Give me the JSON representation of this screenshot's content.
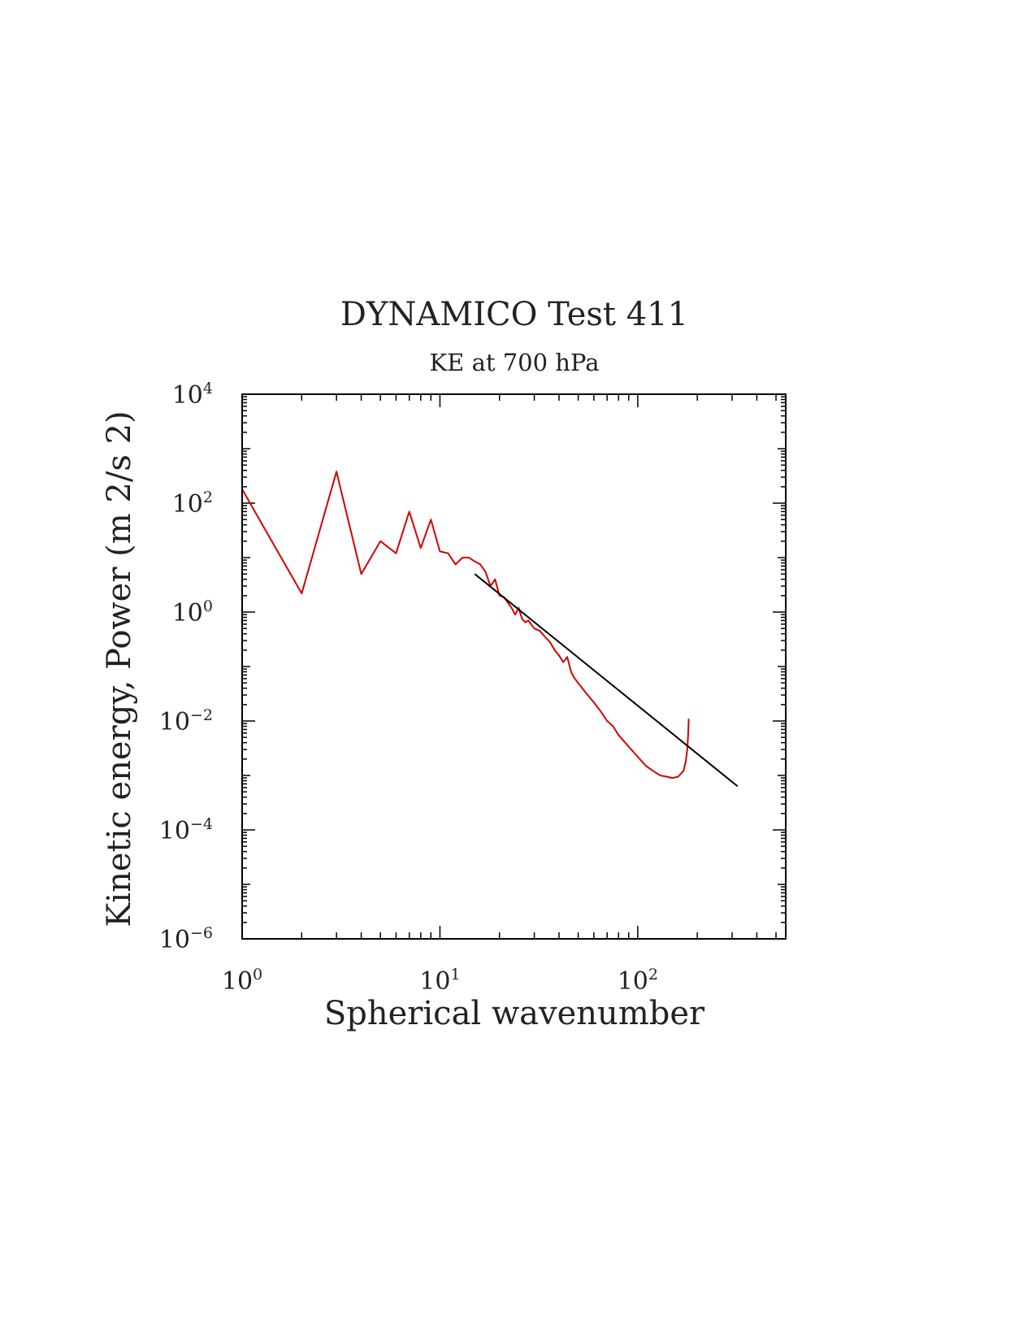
{
  "chart_data": {
    "type": "line",
    "title": "DYNAMICO Test 411",
    "subtitle": "KE at 700 hPa",
    "xlabel": "Spherical wavenumber",
    "ylabel": "Kinetic energy, Power (m 2/s 2)",
    "xscale": "log",
    "yscale": "log",
    "xlim": [
      1,
      560
    ],
    "ylim": [
      1e-06,
      10000
    ],
    "x_ticks": [
      {
        "value": 1,
        "base": "10",
        "exp": "0"
      },
      {
        "value": 10,
        "base": "10",
        "exp": "1"
      },
      {
        "value": 100,
        "base": "10",
        "exp": "2"
      }
    ],
    "y_ticks": [
      {
        "value": 10000,
        "base": "10",
        "exp": "4"
      },
      {
        "value": 100,
        "base": "10",
        "exp": "2"
      },
      {
        "value": 1,
        "base": "10",
        "exp": "0"
      },
      {
        "value": 0.01,
        "base": "10",
        "exp": "−2"
      },
      {
        "value": 0.0001,
        "base": "10",
        "exp": "−4"
      },
      {
        "value": 1e-06,
        "base": "10",
        "exp": "−6"
      }
    ],
    "grid": false,
    "series": [
      {
        "color": "#d40000",
        "x": [
          1,
          2,
          3,
          4,
          5,
          6,
          7,
          8,
          9,
          10,
          11,
          12,
          13,
          14,
          15,
          16,
          17,
          18,
          19,
          20,
          21,
          22,
          23,
          24,
          25,
          26,
          27,
          28,
          30,
          32,
          34,
          36,
          38,
          40,
          42,
          44,
          46,
          48,
          50,
          55,
          60,
          65,
          70,
          75,
          80,
          90,
          100,
          110,
          120,
          130,
          140,
          150,
          160,
          170,
          175,
          178,
          180,
          181
        ],
        "y": [
          180,
          2.2,
          380,
          5.0,
          20,
          12,
          70,
          15,
          50,
          13,
          12,
          7.5,
          10,
          10,
          8.5,
          7.5,
          5.5,
          3.0,
          4.0,
          2.0,
          1.9,
          1.5,
          1.2,
          0.9,
          1.2,
          0.75,
          0.65,
          0.7,
          0.5,
          0.45,
          0.35,
          0.28,
          0.2,
          0.16,
          0.12,
          0.15,
          0.08,
          0.06,
          0.05,
          0.032,
          0.022,
          0.015,
          0.01,
          0.008,
          0.0055,
          0.0034,
          0.0022,
          0.0015,
          0.0012,
          0.001,
          0.00095,
          0.0009,
          0.00095,
          0.0012,
          0.0018,
          0.003,
          0.006,
          0.011
        ]
      },
      {
        "color": "#000000",
        "x": [
          15,
          320
        ],
        "y": [
          5.0,
          0.00063
        ]
      }
    ]
  }
}
